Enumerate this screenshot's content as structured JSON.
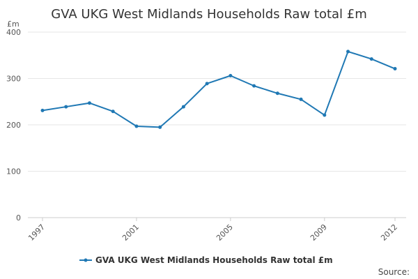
{
  "chart_data": {
    "type": "line",
    "title": "GVA UKG West Midlands Households Raw total £m",
    "y_unit": "£m",
    "xlim": [
      1997,
      2012
    ],
    "ylim": [
      0,
      400
    ],
    "y_ticks": [
      0,
      100,
      200,
      300,
      400
    ],
    "x_ticks": [
      1997,
      2001,
      2005,
      2009,
      2012
    ],
    "x_tick_labels": [
      "1997",
      "2001",
      "2005",
      "2009",
      "2012"
    ],
    "grid": true,
    "legend_position": "bottom-center",
    "series": [
      {
        "name": "GVA UKG West Midlands Households Raw total £m",
        "color": "#1f78b4",
        "x": [
          1997,
          1998,
          1999,
          2000,
          2001,
          2002,
          2003,
          2004,
          2005,
          2006,
          2007,
          2008,
          2009,
          2010,
          2011,
          2012
        ],
        "y": [
          231,
          239,
          247,
          229,
          197,
          195,
          239,
          289,
          306,
          284,
          268,
          255,
          221,
          358,
          342,
          321
        ]
      }
    ],
    "source_label": "Source:"
  }
}
